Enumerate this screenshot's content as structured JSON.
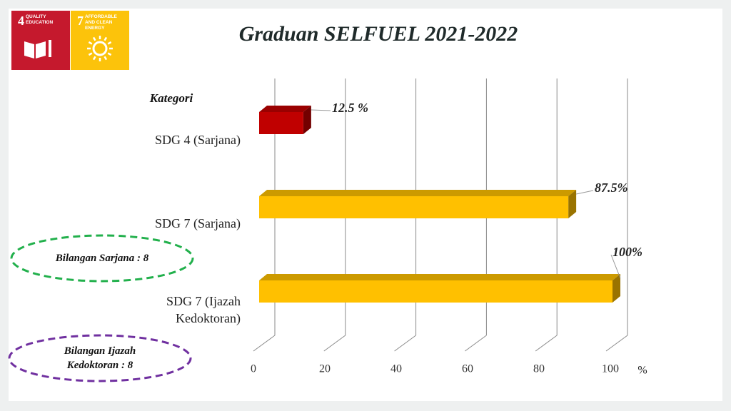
{
  "logos": [
    {
      "number": "4",
      "label": "QUALITY EDUCATION",
      "color": "#c5192d"
    },
    {
      "number": "7",
      "label": "AFFORDABLE AND CLEAN ENERGY",
      "color": "#fcc30b"
    }
  ],
  "chart_data": {
    "type": "bar3d",
    "orientation": "horizontal",
    "title": "Graduan SELFUEL 2021-2022",
    "y_axis_title": "Kategori",
    "x_axis_unit": "%",
    "categories": [
      "SDG 4 (Sarjana)",
      "SDG 7 (Sarjana)",
      "SDG 7 (Ijazah Kedoktoran)"
    ],
    "values": [
      12.5,
      87.5,
      100
    ],
    "value_labels": [
      "12.5 %",
      "87.5%",
      "100%"
    ],
    "colors": [
      "#c00000",
      "#ffc000",
      "#ffc000"
    ],
    "xlim": [
      0,
      100
    ],
    "xticks": [
      0,
      20,
      40,
      60,
      80,
      100
    ],
    "grid": true,
    "annotations": [
      {
        "text": "Bilangan Sarjana : 8",
        "color": "#22b04c"
      },
      {
        "text": "Bilangan Ijazah Kedoktoran : 8",
        "color": "#7030a0"
      }
    ]
  }
}
